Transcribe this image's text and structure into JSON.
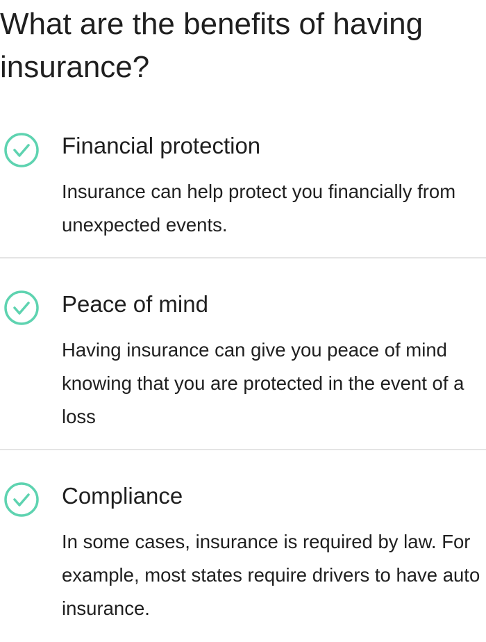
{
  "page": {
    "title": "What are the benefits of having insurance?"
  },
  "benefits": [
    {
      "icon": "check-circle-icon",
      "title": "Financial protection",
      "description": "Insurance can help protect you financially from unexpected events."
    },
    {
      "icon": "check-circle-icon",
      "title": "Peace of mind",
      "description": "Having insurance can give you peace of mind knowing that you are protected in the event of a loss"
    },
    {
      "icon": "check-circle-icon",
      "title": "Compliance",
      "description": "In some cases, insurance is required by law. For example, most states require drivers to have auto insurance."
    }
  ],
  "colors": {
    "accent": "#5ed3b0",
    "text": "#1f1f1f",
    "divider": "#e4e4e4"
  }
}
